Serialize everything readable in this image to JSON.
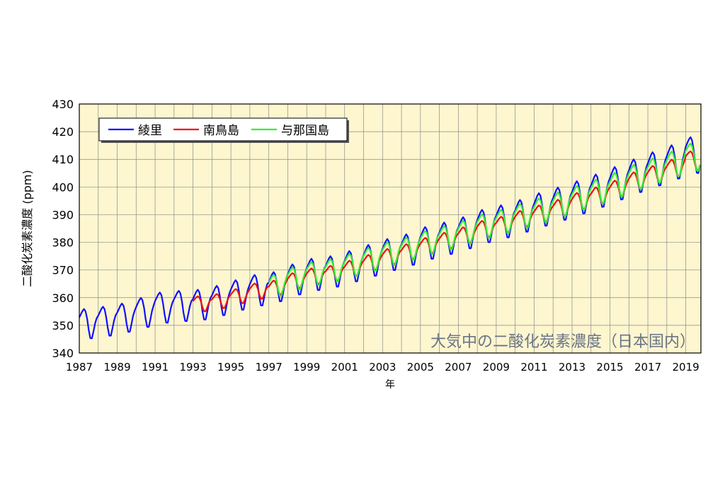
{
  "chart_data": {
    "type": "line",
    "title": "大気中の二酸化炭素濃度（日本国内）",
    "xlabel": "年",
    "ylabel": "二酸化炭素濃度 (ppm)",
    "xlim": [
      1987,
      2019.8
    ],
    "ylim": [
      340,
      430
    ],
    "x_ticks": [
      "1987",
      "1989",
      "1991",
      "1993",
      "1995",
      "1997",
      "1999",
      "2001",
      "2003",
      "2005",
      "2007",
      "2009",
      "2011",
      "2013",
      "2015",
      "2017",
      "2019"
    ],
    "y_ticks": [
      "340",
      "350",
      "360",
      "370",
      "380",
      "390",
      "400",
      "410",
      "420",
      "430"
    ],
    "grid": true,
    "legend_position": "top-left",
    "series": [
      {
        "name": "綾里",
        "color": "#1010ff",
        "start_year": 1987,
        "annual_mean": [
          350.6,
          351.5,
          352.8,
          354.7,
          356.4,
          357.0,
          357.5,
          359.0,
          361.0,
          362.7,
          364.0,
          366.6,
          368.4,
          369.5,
          371.4,
          373.5,
          375.6,
          377.4,
          379.8,
          381.5,
          383.5,
          385.9,
          387.6,
          389.6,
          391.9,
          394.0,
          396.3,
          398.7,
          401.4,
          404.1,
          406.6,
          409.1,
          411.5
        ],
        "seasonal_amplitude": [
          5.5,
          5.5,
          5.5,
          5.6,
          5.6,
          5.6,
          5.7,
          5.7,
          5.7,
          5.8,
          5.8,
          5.8,
          5.9,
          5.9,
          5.9,
          6.0,
          6.0,
          6.0,
          6.1,
          6.1,
          6.1,
          6.2,
          6.2,
          6.2,
          6.3,
          6.3,
          6.3,
          6.4,
          6.4,
          6.4,
          6.5,
          6.5,
          6.5
        ]
      },
      {
        "name": "南鳥島",
        "color": "#ee1010",
        "start_year": 1993,
        "annual_mean": [
          357.8,
          358.8,
          360.6,
          362.4,
          363.7,
          366.2,
          367.8,
          368.9,
          370.7,
          372.8,
          374.9,
          376.7,
          378.9,
          380.7,
          382.7,
          384.9,
          386.5,
          388.6,
          390.5,
          392.6,
          395.0,
          397.1,
          399.6,
          402.4,
          404.7,
          407.0,
          409.5
        ],
        "seasonal_amplitude": [
          2.9,
          2.9,
          2.9,
          3.0,
          3.0,
          3.0,
          3.0,
          3.0,
          3.1,
          3.1,
          3.1,
          3.1,
          3.1,
          3.2,
          3.2,
          3.2,
          3.2,
          3.2,
          3.3,
          3.3,
          3.3,
          3.3,
          3.3,
          3.4,
          3.4,
          3.4,
          3.4
        ]
      },
      {
        "name": "与那国島",
        "color": "#33ee33",
        "start_year": 1997,
        "annual_mean": [
          364.5,
          367.0,
          368.7,
          369.9,
          371.8,
          373.9,
          375.9,
          377.7,
          380.0,
          381.7,
          383.7,
          385.9,
          387.6,
          389.6,
          391.6,
          393.8,
          396.1,
          398.4,
          400.9,
          403.7,
          406.0,
          408.4,
          410.8
        ],
        "seasonal_amplitude": [
          4.3,
          4.3,
          4.4,
          4.4,
          4.4,
          4.5,
          4.5,
          4.5,
          4.5,
          4.6,
          4.6,
          4.6,
          4.6,
          4.7,
          4.7,
          4.7,
          4.7,
          4.8,
          4.8,
          4.8,
          4.8,
          4.9,
          4.9
        ]
      }
    ]
  }
}
